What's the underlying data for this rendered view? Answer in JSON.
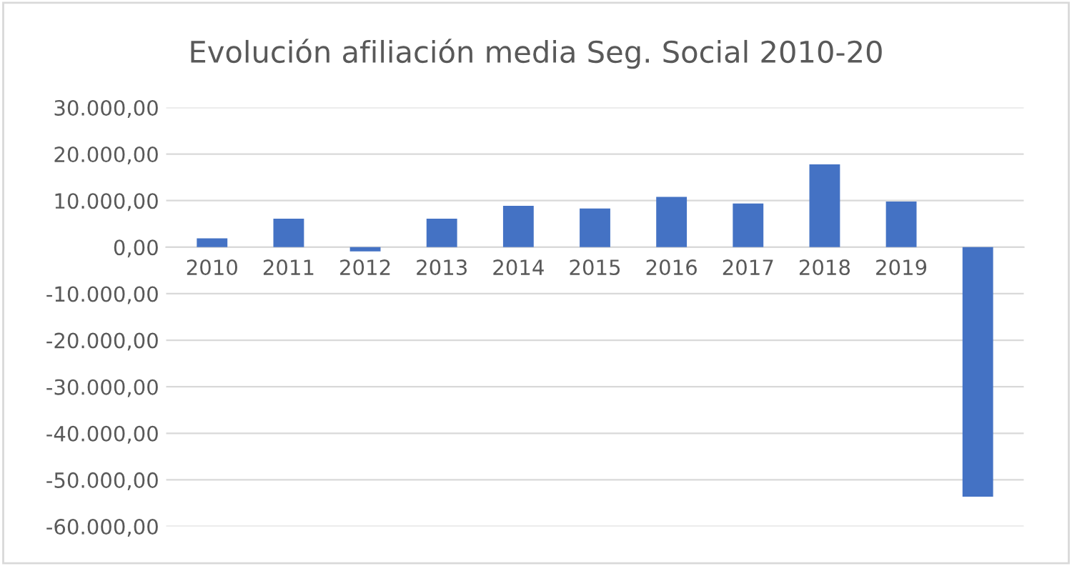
{
  "chart_data": {
    "type": "bar",
    "title": "Evolución afiliación media Seg. Social 2010-20",
    "categories": [
      "2010",
      "2011",
      "2012",
      "2013",
      "2014",
      "2015",
      "2016",
      "2017",
      "2018",
      "2019",
      null
    ],
    "values": [
      1900,
      6100,
      -900,
      6100,
      8900,
      8300,
      10800,
      9400,
      17800,
      9800,
      -53600
    ],
    "color": "#4472c4",
    "ylim": [
      -60000,
      30000
    ],
    "yticks": [
      {
        "value": -60000,
        "label": "-60.000,00"
      },
      {
        "value": -50000,
        "label": "-50.000,00"
      },
      {
        "value": -40000,
        "label": "-40.000,00"
      },
      {
        "value": -30000,
        "label": "-30.000,00"
      },
      {
        "value": -20000,
        "label": "-20.000,00"
      },
      {
        "value": -10000,
        "label": "-10.000,00"
      },
      {
        "value": 0,
        "label": "0,00"
      },
      {
        "value": 10000,
        "label": "10.000,00"
      },
      {
        "value": 20000,
        "label": "20.000,00"
      },
      {
        "value": 30000,
        "label": "30.000,00"
      }
    ],
    "grid": "y",
    "legend": false
  }
}
